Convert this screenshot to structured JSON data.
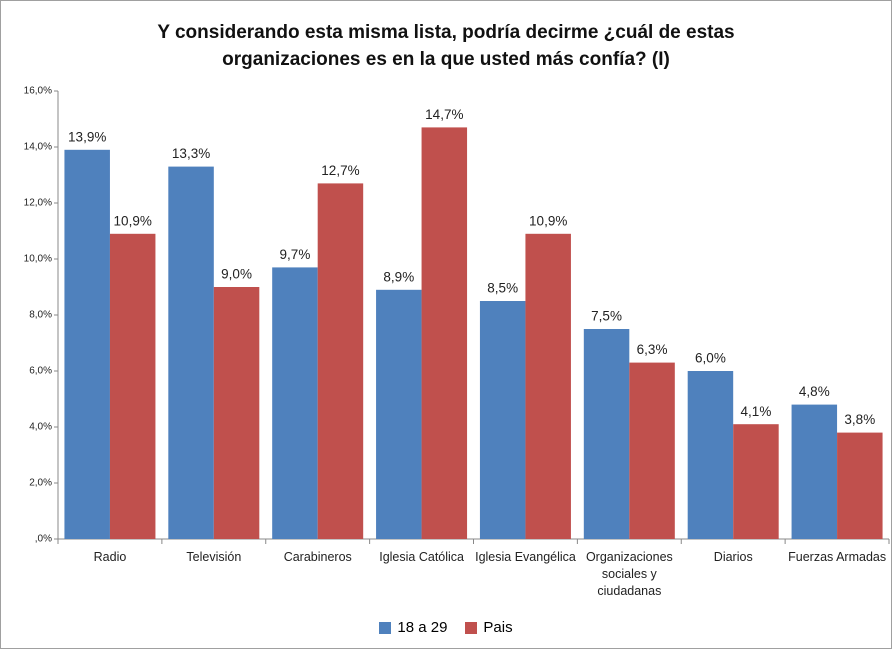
{
  "chart_data": {
    "type": "bar",
    "title": "Y considerando esta misma lista, podría decirme ¿cuál de estas organizaciones es en la que usted más confía? (I)",
    "categories": [
      "Radio",
      "Televisión",
      "Carabineros",
      "Iglesia Católica",
      "Iglesia Evangélica",
      "Organizaciones sociales y ciudadanas",
      "Diarios",
      "Fuerzas Armadas"
    ],
    "series": [
      {
        "name": "18 a 29",
        "color": "#4f81bd",
        "values": [
          13.9,
          13.3,
          9.7,
          8.9,
          8.5,
          7.5,
          6.0,
          4.8
        ],
        "value_labels": [
          "13,9%",
          "13,3%",
          "9,7%",
          "8,9%",
          "8,5%",
          "7,5%",
          "6,0%",
          "4,8%"
        ]
      },
      {
        "name": "Pais",
        "color": "#c0504d",
        "values": [
          10.9,
          9.0,
          12.7,
          14.7,
          10.9,
          6.3,
          4.1,
          3.8
        ],
        "value_labels": [
          "10,9%",
          "9,0%",
          "12,7%",
          "14,7%",
          "10,9%",
          "6,3%",
          "4,1%",
          "3,8%"
        ]
      }
    ],
    "ylim": [
      0,
      16
    ],
    "yticks": [
      {
        "value": 0,
        "label": ",0%"
      },
      {
        "value": 2,
        "label": "2,0%"
      },
      {
        "value": 4,
        "label": "4,0%"
      },
      {
        "value": 6,
        "label": "6,0%"
      },
      {
        "value": 8,
        "label": "8,0%"
      },
      {
        "value": 10,
        "label": "10,0%"
      },
      {
        "value": 12,
        "label": "12,0%"
      },
      {
        "value": 14,
        "label": "14,0%"
      },
      {
        "value": 16,
        "label": "16,0%"
      }
    ],
    "grid": false,
    "legend": "bottom"
  }
}
